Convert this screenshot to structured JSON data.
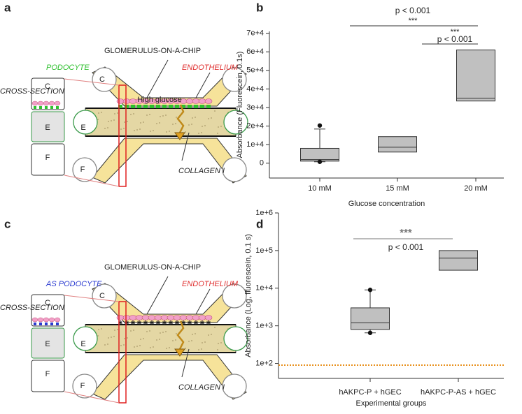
{
  "panel_labels": [
    "a",
    "b",
    "c",
    "d"
  ],
  "diagram_a": {
    "title": "GLOMERULUS-ON-A-CHIP",
    "podocyte": "PODOCYTE",
    "endothelium": "ENDOTHELIUM",
    "cross_section": "CROSS-SECTION",
    "section_labels": [
      "C",
      "E",
      "F"
    ],
    "port_labels": [
      "C",
      "E",
      "F"
    ],
    "stimulus": "High glucose",
    "collagen": "COLLAGEN I"
  },
  "diagram_c": {
    "title": "GLOMERULUS-ON-A-CHIP",
    "podocyte": "AS PODOCYTE",
    "endothelium": "ENDOTHELIUM",
    "cross_section": "CROSS-SECTION",
    "section_labels": [
      "C",
      "E",
      "F"
    ],
    "port_labels": [
      "C",
      "E",
      "F"
    ],
    "collagen": "COLLAGEN I"
  },
  "chart_data": [
    {
      "type": "box",
      "ylabel": "Absorbance (Fluorescein, 0.1s)",
      "xlabel": "Glucose concentration",
      "categories": [
        "10 mM",
        "15 mM",
        "20 mM"
      ],
      "color": "#c0c0c0",
      "boxes": [
        {
          "whisker_low": 750,
          "q1": 1100,
          "median": 1900,
          "q3": 8000,
          "whisker_high": 18400,
          "outliers": [
            20300,
            750
          ]
        },
        {
          "q1": 6000,
          "median": 8600,
          "q3": 14300
        },
        {
          "q1": 33500,
          "median": 35000,
          "q3": 61000
        }
      ],
      "ylim": [
        -8000,
        71000
      ],
      "yticks": [
        0,
        {
          "value": 10000,
          "label": "1e+4"
        },
        {
          "value": 20000,
          "label": "2e+4"
        },
        {
          "value": 30000,
          "label": "3e+4"
        },
        {
          "value": 40000,
          "label": "4e+4"
        },
        {
          "value": 50000,
          "label": "5e+4"
        },
        {
          "value": 60000,
          "label": "6e+4"
        },
        {
          "value": 70000,
          "label": "7e+4"
        }
      ],
      "annotations": [
        {
          "p_text": "p < 0.001",
          "stars": "***"
        },
        {
          "p_text": "p < 0.001",
          "stars": "***"
        }
      ]
    },
    {
      "type": "box",
      "ylabel": "Absorbance (Log, fluorescein, 0.1 s)",
      "xlabel": "Experimental groups",
      "categories": [
        "hAKPC-P + hGEC",
        "hAKPC-P-AS + hGEC"
      ],
      "color": "#c0c0c0",
      "log_scale": true,
      "boxes": [
        {
          "whisker_low": 650,
          "q1": 800,
          "median": 1200,
          "q3": 3000,
          "whisker_high": 9000,
          "outliers": [
            650,
            9000
          ]
        },
        {
          "q1": 30000,
          "median": 63000,
          "q3": 100000
        }
      ],
      "ylim": [
        40,
        1000000
      ],
      "yticks": [
        {
          "value": 100,
          "label": "1e+2"
        },
        {
          "value": 1000,
          "label": "1e+3"
        },
        {
          "value": 10000,
          "label": "1e+4"
        },
        {
          "value": 100000,
          "label": "1e+5"
        },
        {
          "value": 1000000,
          "label": "1e+6"
        }
      ],
      "reference_line": 90,
      "reference_color": "#e8901c",
      "annotations": [
        {
          "stars": "***",
          "p_text": "p < 0.001"
        }
      ]
    }
  ]
}
